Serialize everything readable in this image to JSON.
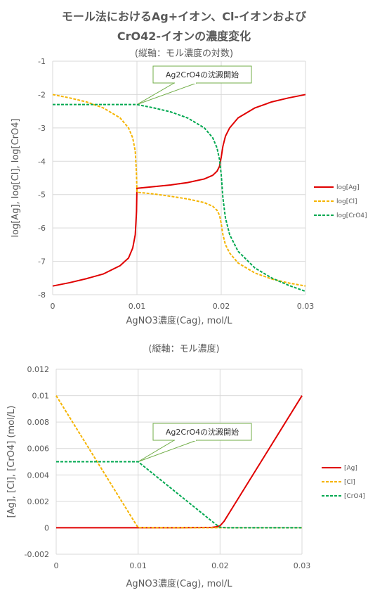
{
  "title": {
    "line1": "モール法におけるAg+イオン、Cl-イオンおよび",
    "line2": "CrO42-イオンの濃度変化"
  },
  "colors": {
    "Ag": "#e00000",
    "Cl": "#f5b400",
    "CrO4": "#00a850",
    "grid": "#d9d9d9"
  },
  "chart_data": [
    {
      "type": "line",
      "subtitle": "(縦軸：モル濃度の対数)",
      "xlabel": "AgNO3濃度(Cag), mol/L",
      "ylabel": "log[Ag], log[Cl], log[CrO4]",
      "xlim": [
        0,
        0.03
      ],
      "ylim": [
        -8,
        -1
      ],
      "xticks": [
        "0",
        "0.01",
        "0.02",
        "0.03"
      ],
      "yticks": [
        "-1",
        "-2",
        "-3",
        "-4",
        "-5",
        "-6",
        "-7",
        "-8"
      ],
      "legend_position": "right",
      "annotation": {
        "text": "Ag2CrO4の沈澱開始",
        "x": 0.01,
        "y": -2.3
      },
      "series": [
        {
          "name": "log[Ag]",
          "color": "#e00000",
          "dash": false,
          "x": [
            0,
            0.002,
            0.004,
            0.006,
            0.008,
            0.009,
            0.0095,
            0.0098,
            0.00995,
            0.01,
            0.012,
            0.014,
            0.016,
            0.018,
            0.019,
            0.0195,
            0.0198,
            0.02,
            0.0202,
            0.0205,
            0.021,
            0.022,
            0.024,
            0.026,
            0.028,
            0.03
          ],
          "y": [
            -7.74,
            -7.64,
            -7.52,
            -7.38,
            -7.13,
            -6.9,
            -6.6,
            -6.2,
            -5.5,
            -4.81,
            -4.76,
            -4.71,
            -4.64,
            -4.53,
            -4.42,
            -4.3,
            -4.15,
            -3.88,
            -3.55,
            -3.25,
            -3.0,
            -2.7,
            -2.4,
            -2.22,
            -2.1,
            -2.0
          ]
        },
        {
          "name": "log[Cl]",
          "color": "#f5b400",
          "dash": true,
          "x": [
            0,
            0.002,
            0.004,
            0.006,
            0.008,
            0.009,
            0.0095,
            0.0098,
            0.00995,
            0.01,
            0.012,
            0.014,
            0.016,
            0.018,
            0.019,
            0.0195,
            0.0198,
            0.02,
            0.0202,
            0.0205,
            0.021,
            0.022,
            0.024,
            0.026,
            0.028,
            0.03
          ],
          "y": [
            -2.0,
            -2.1,
            -2.22,
            -2.4,
            -2.7,
            -3.0,
            -3.3,
            -3.7,
            -4.4,
            -4.93,
            -4.98,
            -5.05,
            -5.13,
            -5.24,
            -5.35,
            -5.47,
            -5.62,
            -5.87,
            -6.2,
            -6.5,
            -6.75,
            -7.05,
            -7.35,
            -7.53,
            -7.65,
            -7.74
          ]
        },
        {
          "name": "log[CrO4]",
          "color": "#00a850",
          "dash": true,
          "x": [
            0,
            0.002,
            0.004,
            0.006,
            0.008,
            0.01,
            0.012,
            0.014,
            0.016,
            0.018,
            0.019,
            0.0195,
            0.0198,
            0.02,
            0.0202,
            0.0205,
            0.021,
            0.022,
            0.024,
            0.026,
            0.028,
            0.03
          ],
          "y": [
            -2.3,
            -2.3,
            -2.3,
            -2.3,
            -2.3,
            -2.3,
            -2.4,
            -2.52,
            -2.7,
            -3.0,
            -3.3,
            -3.6,
            -3.95,
            -4.4,
            -5.1,
            -5.7,
            -6.2,
            -6.7,
            -7.2,
            -7.5,
            -7.72,
            -7.9
          ]
        }
      ]
    },
    {
      "type": "line",
      "subtitle": "(縦軸：モル濃度)",
      "xlabel": "AgNO3濃度(Cag), mol/L",
      "ylabel": "[Ag], [Cl], [CrO4] (mol/L)",
      "xlim": [
        0,
        0.03
      ],
      "ylim": [
        -0.002,
        0.012
      ],
      "xticks": [
        "0",
        "0.01",
        "0.02",
        "0.03"
      ],
      "yticks": [
        "0.012",
        "0.01",
        "0.008",
        "0.006",
        "0.004",
        "0.002",
        "0",
        "-0.002"
      ],
      "legend_position": "right",
      "annotation": {
        "text": "Ag2CrO4の沈澱開始",
        "x": 0.01,
        "y": 0.005
      },
      "series": [
        {
          "name": "[Ag]",
          "color": "#e00000",
          "dash": false,
          "x": [
            0,
            0.005,
            0.01,
            0.015,
            0.019,
            0.0195,
            0.02,
            0.0205,
            0.021,
            0.025,
            0.03
          ],
          "y": [
            0,
            0,
            0,
            0,
            3e-05,
            7e-05,
            0.00015,
            0.0005,
            0.001,
            0.005,
            0.01
          ]
        },
        {
          "name": "[Cl]",
          "color": "#f5b400",
          "dash": true,
          "x": [
            0,
            0.005,
            0.0095,
            0.01,
            0.015,
            0.02,
            0.025,
            0.03
          ],
          "y": [
            0.01,
            0.005,
            0.0005,
            1e-05,
            0,
            0,
            0,
            0
          ]
        },
        {
          "name": "[CrO4]",
          "color": "#00a850",
          "dash": true,
          "x": [
            0,
            0.005,
            0.01,
            0.015,
            0.0195,
            0.02,
            0.021,
            0.025,
            0.03
          ],
          "y": [
            0.005,
            0.005,
            0.005,
            0.0025,
            0.00025,
            4e-05,
            0,
            0,
            0
          ]
        }
      ]
    }
  ]
}
